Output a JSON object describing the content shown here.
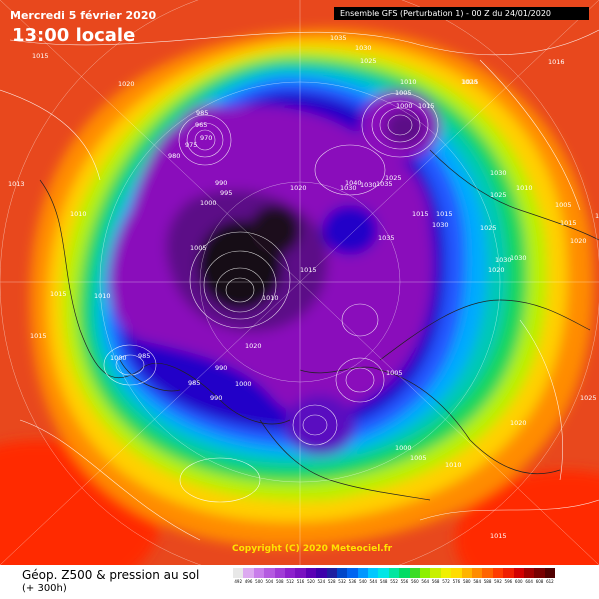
{
  "map": {
    "title_date": "Mercredi 5 février 2020",
    "title_time": "13:00 locale",
    "run_info": "Ensemble GFS (Perturbation 1) - 00 Z du 24/01/2020",
    "copyright": "Copyright (C) 2020 Meteociel.fr",
    "pressure_labels": [
      "1015",
      "1020",
      "1035",
      "1030",
      "1025",
      "1010",
      "1005",
      "1000",
      "1016",
      "1015",
      "1013",
      "1010",
      "1015",
      "1025",
      "1030",
      "1020",
      "1015",
      "1010",
      "1030",
      "1015",
      "1020",
      "1030",
      "985",
      "965",
      "970",
      "975",
      "980",
      "990",
      "995",
      "1000",
      "1020",
      "1005",
      "1015",
      "985",
      "990",
      "1000",
      "985",
      "990",
      "1000",
      "1035",
      "1040",
      "1030",
      "1025",
      "1015",
      "1005",
      "1020",
      "1010",
      "1035",
      "1015",
      "1025",
      "1020",
      "1030",
      "1015",
      "1010",
      "1005",
      "1010",
      "1030",
      "1025",
      "1020",
      "1015",
      "1010",
      "1005",
      "1000"
    ],
    "colors": {
      "outer": "#e8481d",
      "red": "#ff3000",
      "orange": "#ff8c00",
      "yellow": "#ffe000",
      "lime": "#b8f000",
      "green": "#19d65b",
      "teal": "#00bdbd",
      "cyan": "#00b2ff",
      "blue": "#2458ff",
      "darkblue": "#2200c8",
      "purple": "#8a0bbb",
      "darkpurple": "#5b0f87",
      "black": "#151015",
      "contour": "#ffffff",
      "coast": "#222222"
    }
  },
  "footer": {
    "title": "Géop. Z500 & pression au sol",
    "subtitle": "(+ 300h)"
  },
  "legend": {
    "labels": [
      "492",
      "496",
      "500",
      "504",
      "508",
      "512",
      "516",
      "520",
      "524",
      "528",
      "532",
      "536",
      "540",
      "544",
      "548",
      "552",
      "556",
      "560",
      "564",
      "568",
      "572",
      "576",
      "580",
      "584",
      "588",
      "592",
      "596",
      "600",
      "604",
      "608",
      "612"
    ],
    "colors": [
      "#e8e8e8",
      "#dcaaf0",
      "#c87dea",
      "#b45ae0",
      "#a03cd6",
      "#8c20cc",
      "#7810c0",
      "#5a00b4",
      "#3c00aa",
      "#1e1ea0",
      "#0046c8",
      "#0064f0",
      "#0096ff",
      "#00c8ff",
      "#00e6e6",
      "#00e6a0",
      "#00dc64",
      "#3cdc28",
      "#8cf000",
      "#c8f000",
      "#f0f000",
      "#ffdc00",
      "#ffb400",
      "#ff8c00",
      "#ff6400",
      "#ff3c00",
      "#f01e00",
      "#d20000",
      "#a00000",
      "#780000",
      "#500000"
    ]
  }
}
